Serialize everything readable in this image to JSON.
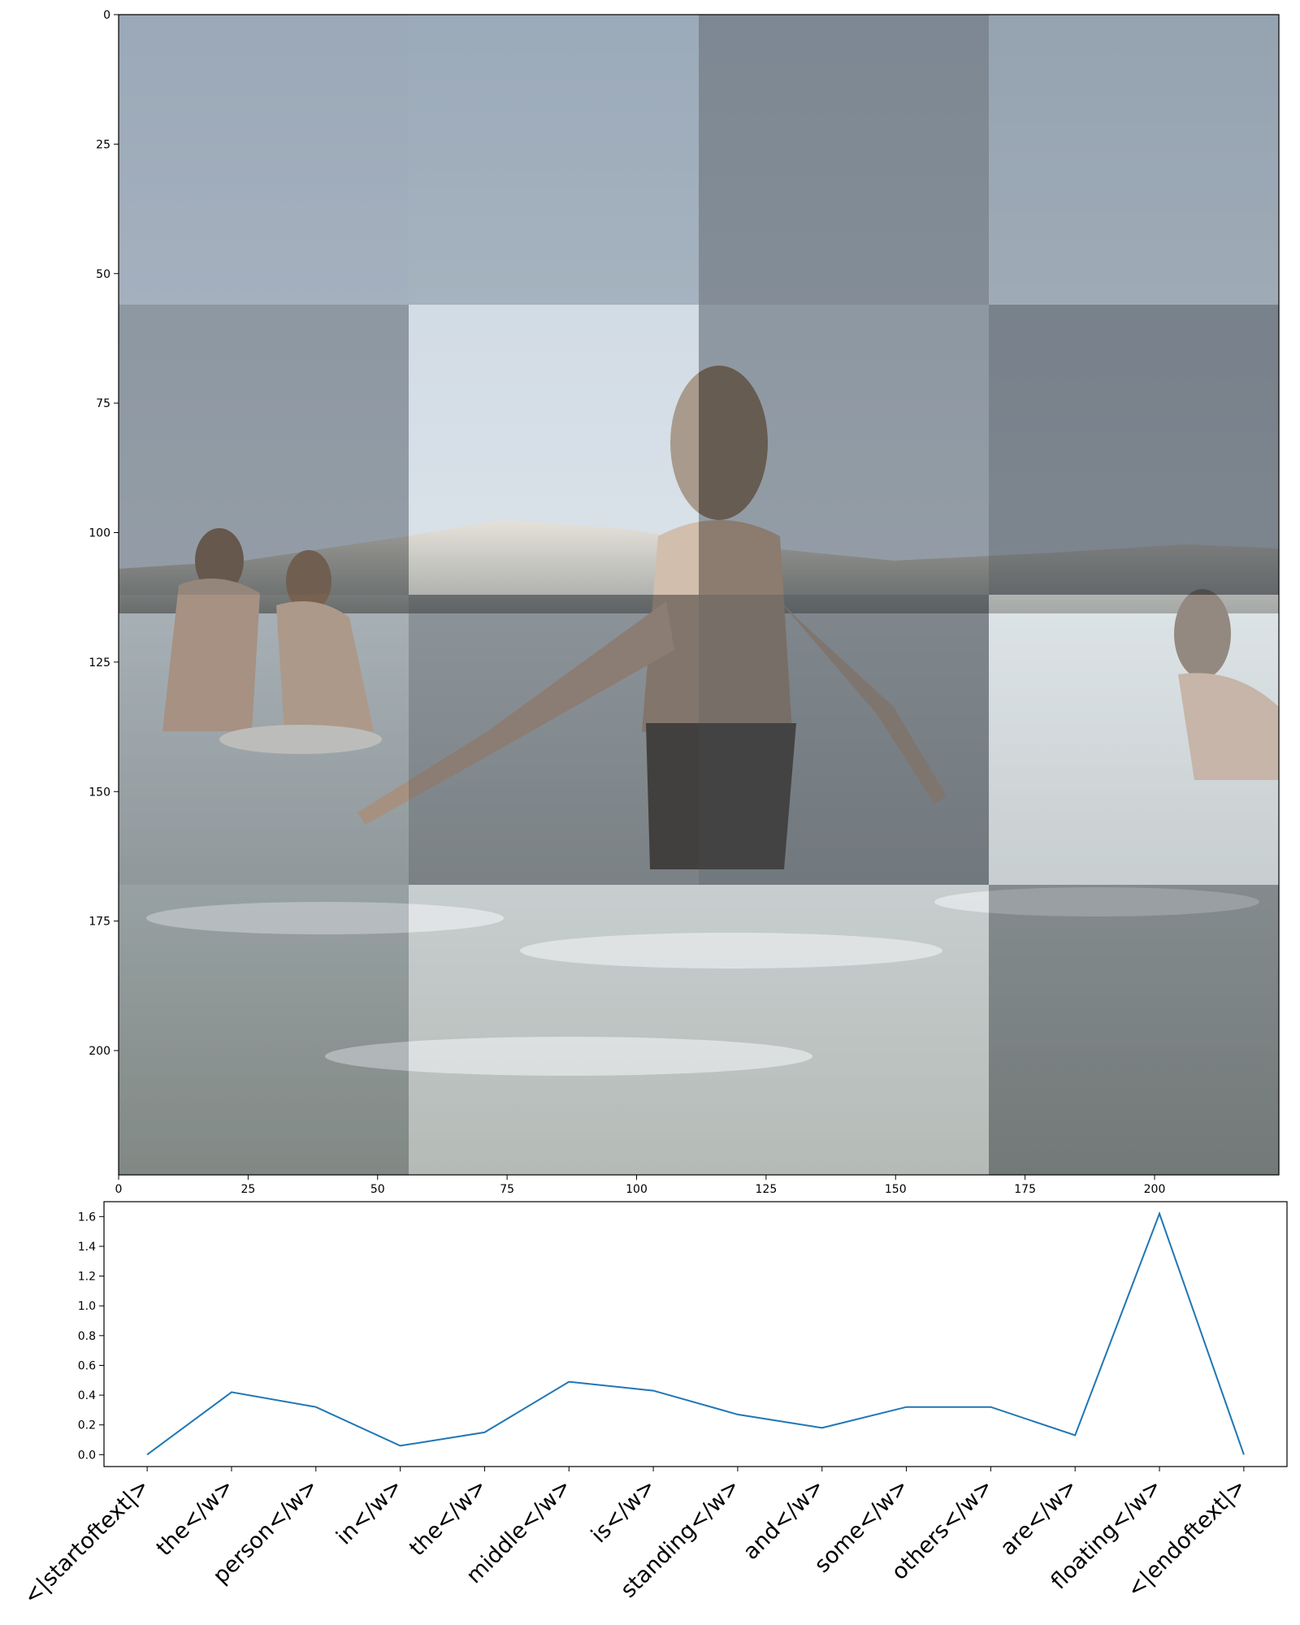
{
  "chart_data": [
    {
      "type": "heatmap",
      "description_of_background": "",
      "xlim": [
        0,
        224
      ],
      "ylim": [
        224,
        0
      ],
      "x_ticks": [
        0,
        25,
        50,
        75,
        100,
        125,
        150,
        175,
        200
      ],
      "y_ticks": [
        0,
        25,
        50,
        75,
        100,
        125,
        150,
        175,
        200
      ],
      "grid_size": [
        4,
        4
      ],
      "cell_size_data_units": 56,
      "cell_shading": [
        [
          0.78,
          0.8,
          0.45,
          0.72
        ],
        [
          0.55,
          0.95,
          0.55,
          0.35
        ],
        [
          0.7,
          0.45,
          0.35,
          0.95
        ],
        [
          0.8,
          0.93,
          0.95,
          0.55
        ]
      ]
    },
    {
      "type": "line",
      "categories": [
        "<|startoftext|>",
        "the</w>",
        "person</w>",
        "in</w>",
        "the</w>",
        "middle</w>",
        "is</w>",
        "standing</w>",
        "and</w>",
        "some</w>",
        "others</w>",
        "are</w>",
        "floating</w>",
        "<|endoftext|>"
      ],
      "series": [
        {
          "values": [
            0.0,
            0.42,
            0.32,
            0.06,
            0.15,
            0.49,
            0.43,
            0.27,
            0.18,
            0.32,
            0.32,
            0.13,
            1.62,
            0.0
          ]
        }
      ],
      "y_ticks": [
        0.0,
        0.2,
        0.4,
        0.6,
        0.8,
        1.0,
        1.2,
        1.4,
        1.6
      ],
      "ylim": [
        -0.08,
        1.7
      ],
      "line_color": "#1f77b4",
      "grid": false
    }
  ]
}
